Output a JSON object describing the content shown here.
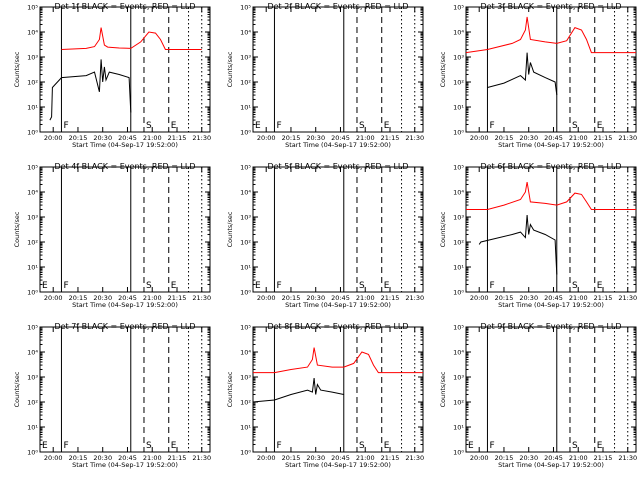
{
  "figure": {
    "xlabel": "Start Time (04-Sep-17 19:52:00)",
    "ylabel": "Counts/sec"
  },
  "chart_data": [
    {
      "type": "line",
      "title": "Det 1f BLACK = Events, RED = LLD",
      "xlabel": "Start Time (04-Sep-17 19:52:00)",
      "ylabel": "Counts/sec",
      "xlim": [
        "19:52",
        "21:35"
      ],
      "xticks": [
        "20:00",
        "20:15",
        "20:30",
        "20:45",
        "21:00",
        "21:15",
        "21:30"
      ],
      "ylim": [
        1,
        100000
      ],
      "ylog": true,
      "yticks": [
        "10^0",
        "10^1",
        "10^2",
        "10^3",
        "10^4",
        "10^5"
      ],
      "markers": [
        {
          "label": "F",
          "x": "20:05",
          "style": "solid"
        },
        {
          "label": "S",
          "x": "20:55",
          "style": "dashed"
        },
        {
          "label": "E",
          "x": "21:10",
          "style": "dashed"
        }
      ],
      "vlines": [
        {
          "x": "20:47",
          "style": "solid"
        },
        {
          "x": "21:22",
          "style": "dotted"
        },
        {
          "x": "21:30",
          "style": "dotted"
        }
      ],
      "series": [
        {
          "name": "LLD",
          "color": "#ff0000",
          "x": [
            "20:05",
            "20:20",
            "20:25",
            "20:28",
            "20:29",
            "20:31",
            "20:33",
            "20:40",
            "20:47",
            "20:53",
            "20:58",
            "21:02",
            "21:05",
            "21:08",
            "21:30"
          ],
          "y": [
            2000,
            2200,
            2600,
            5000,
            15000,
            3000,
            2500,
            2300,
            2200,
            4000,
            10000,
            9000,
            5000,
            2000,
            2000
          ]
        },
        {
          "name": "Events",
          "color": "#000000",
          "x": [
            "19:58",
            "19:59",
            "19:59.5",
            "20:05",
            "20:20",
            "20:25",
            "20:28",
            "20:29",
            "20:30",
            "20:31",
            "20:32",
            "20:34",
            "20:40",
            "20:46",
            "20:47"
          ],
          "y": [
            3,
            4,
            60,
            150,
            180,
            250,
            40,
            800,
            100,
            400,
            120,
            250,
            200,
            150,
            6
          ]
        }
      ]
    },
    {
      "type": "line",
      "title": "Det 2f BLACK = Events, RED = LLD",
      "xlabel": "Start Time (04-Sep-17 19:52:00)",
      "ylabel": "Counts/sec",
      "xlim": [
        "19:52",
        "21:35"
      ],
      "xticks": [
        "20:00",
        "20:15",
        "20:30",
        "20:45",
        "21:00",
        "21:15",
        "21:30"
      ],
      "ylim": [
        1,
        100000
      ],
      "ylog": true,
      "yticks": [
        "10^0",
        "10^1",
        "10^2",
        "10^3",
        "10^4",
        "10^5"
      ],
      "markers": [
        {
          "label": "F",
          "x": "20:05",
          "style": "solid"
        },
        {
          "label": "S",
          "x": "20:55",
          "style": "dashed"
        },
        {
          "label": "E",
          "x": "21:10",
          "style": "dashed"
        }
      ],
      "vlines": [
        {
          "x": "20:47",
          "style": "solid"
        },
        {
          "x": "21:22",
          "style": "dotted"
        },
        {
          "x": "21:30",
          "style": "dotted"
        }
      ],
      "corner_label": "E",
      "series": []
    },
    {
      "type": "line",
      "title": "Det 3f BLACK = Events, RED = LLD",
      "xlabel": "Start Time (04-Sep-17 19:52:00)",
      "ylabel": "Counts/sec",
      "xlim": [
        "19:52",
        "21:35"
      ],
      "xticks": [
        "20:00",
        "20:15",
        "20:30",
        "20:45",
        "21:00",
        "21:15",
        "21:30"
      ],
      "ylim": [
        1,
        100000
      ],
      "ylog": true,
      "yticks": [
        "10^0",
        "10^1",
        "10^2",
        "10^3",
        "10^4",
        "10^5"
      ],
      "markers": [
        {
          "label": "F",
          "x": "20:05",
          "style": "solid"
        },
        {
          "label": "S",
          "x": "20:55",
          "style": "dashed"
        },
        {
          "label": "E",
          "x": "21:10",
          "style": "dashed"
        }
      ],
      "vlines": [
        {
          "x": "20:47",
          "style": "solid"
        },
        {
          "x": "21:22",
          "style": "dotted"
        },
        {
          "x": "21:30",
          "style": "dotted"
        }
      ],
      "series": [
        {
          "name": "LLD",
          "color": "#ff0000",
          "x": [
            "19:52",
            "20:05",
            "20:20",
            "20:25",
            "20:28",
            "20:29",
            "20:31",
            "20:40",
            "20:47",
            "20:53",
            "20:58",
            "21:02",
            "21:05",
            "21:08",
            "21:35"
          ],
          "y": [
            1500,
            2000,
            3500,
            5000,
            12000,
            40000,
            5000,
            4000,
            3500,
            4500,
            15000,
            12000,
            5000,
            1500,
            1500
          ]
        },
        {
          "name": "Events",
          "color": "#000000",
          "x": [
            "20:05",
            "20:15",
            "20:25",
            "20:28",
            "20:29",
            "20:30",
            "20:31",
            "20:33",
            "20:40",
            "20:46",
            "20:47"
          ],
          "y": [
            60,
            90,
            180,
            120,
            1500,
            200,
            600,
            250,
            150,
            100,
            30
          ]
        }
      ]
    },
    {
      "type": "line",
      "title": "Det 4f BLACK = Events, RED = LLD",
      "xlabel": "Start Time (04-Sep-17 19:52:00)",
      "ylabel": "Counts/sec",
      "xlim": [
        "19:52",
        "21:35"
      ],
      "xticks": [
        "20:00",
        "20:15",
        "20:30",
        "20:45",
        "21:00",
        "21:15",
        "21:30"
      ],
      "ylim": [
        1,
        100000
      ],
      "ylog": true,
      "yticks": [
        "10^0",
        "10^1",
        "10^2",
        "10^3",
        "10^4",
        "10^5"
      ],
      "markers": [
        {
          "label": "F",
          "x": "20:05",
          "style": "solid"
        },
        {
          "label": "S",
          "x": "20:55",
          "style": "dashed"
        },
        {
          "label": "E",
          "x": "21:10",
          "style": "dashed"
        }
      ],
      "vlines": [
        {
          "x": "20:47",
          "style": "solid"
        },
        {
          "x": "21:22",
          "style": "dotted"
        },
        {
          "x": "21:30",
          "style": "dotted"
        }
      ],
      "corner_label": "E",
      "series": []
    },
    {
      "type": "line",
      "title": "Det 5f BLACK = Events, RED = LLD",
      "xlabel": "Start Time (04-Sep-17 19:52:00)",
      "ylabel": "Counts/sec",
      "xlim": [
        "19:52",
        "21:35"
      ],
      "xticks": [
        "20:00",
        "20:15",
        "20:30",
        "20:45",
        "21:00",
        "21:15",
        "21:30"
      ],
      "ylim": [
        1,
        100000
      ],
      "ylog": true,
      "yticks": [
        "10^0",
        "10^1",
        "10^2",
        "10^3",
        "10^4",
        "10^5"
      ],
      "markers": [
        {
          "label": "F",
          "x": "20:05",
          "style": "solid"
        },
        {
          "label": "S",
          "x": "20:55",
          "style": "dashed"
        },
        {
          "label": "E",
          "x": "21:10",
          "style": "dashed"
        }
      ],
      "vlines": [
        {
          "x": "20:47",
          "style": "solid"
        },
        {
          "x": "21:22",
          "style": "dotted"
        },
        {
          "x": "21:30",
          "style": "dotted"
        }
      ],
      "corner_label": "E",
      "series": []
    },
    {
      "type": "line",
      "title": "Det 6f BLACK = Events, RED = LLD",
      "xlabel": "Start Time (04-Sep-17 19:52:00)",
      "ylabel": "Counts/sec",
      "xlim": [
        "19:52",
        "21:35"
      ],
      "xticks": [
        "20:00",
        "20:15",
        "20:30",
        "20:45",
        "21:00",
        "21:15",
        "21:30"
      ],
      "ylim": [
        1,
        100000
      ],
      "ylog": true,
      "yticks": [
        "10^0",
        "10^1",
        "10^2",
        "10^3",
        "10^4",
        "10^5"
      ],
      "markers": [
        {
          "label": "F",
          "x": "20:05",
          "style": "solid"
        },
        {
          "label": "S",
          "x": "20:55",
          "style": "dashed"
        },
        {
          "label": "E",
          "x": "21:10",
          "style": "dashed"
        }
      ],
      "vlines": [
        {
          "x": "20:47",
          "style": "solid"
        },
        {
          "x": "21:22",
          "style": "dotted"
        },
        {
          "x": "21:30",
          "style": "dotted"
        }
      ],
      "series": [
        {
          "name": "LLD",
          "color": "#ff0000",
          "x": [
            "19:52",
            "20:05",
            "20:15",
            "20:25",
            "20:28",
            "20:29",
            "20:31",
            "20:40",
            "20:47",
            "20:53",
            "20:58",
            "21:02",
            "21:05",
            "21:08",
            "21:35"
          ],
          "y": [
            2000,
            2000,
            3000,
            5000,
            10000,
            25000,
            4000,
            3500,
            3000,
            4000,
            9000,
            8000,
            4000,
            2000,
            2000
          ]
        },
        {
          "name": "Events",
          "color": "#000000",
          "x": [
            "20:00",
            "20:01",
            "20:20",
            "20:25",
            "20:28",
            "20:29",
            "20:30",
            "20:31",
            "20:33",
            "20:40",
            "20:46",
            "20:47"
          ],
          "y": [
            80,
            100,
            200,
            250,
            150,
            1200,
            200,
            500,
            300,
            200,
            120,
            5
          ]
        }
      ]
    },
    {
      "type": "line",
      "title": "Det 7f BLACK = Events, RED = LLD",
      "xlabel": "Start Time (04-Sep-17 19:52:00)",
      "ylabel": "Counts/sec",
      "xlim": [
        "19:52",
        "21:35"
      ],
      "xticks": [
        "20:00",
        "20:15",
        "20:30",
        "20:45",
        "21:00",
        "21:15",
        "21:30"
      ],
      "ylim": [
        1,
        100000
      ],
      "ylog": true,
      "yticks": [
        "10^0",
        "10^1",
        "10^2",
        "10^3",
        "10^4",
        "10^5"
      ],
      "markers": [
        {
          "label": "F",
          "x": "20:05",
          "style": "solid"
        },
        {
          "label": "S",
          "x": "20:55",
          "style": "dashed"
        },
        {
          "label": "E",
          "x": "21:10",
          "style": "dashed"
        }
      ],
      "vlines": [
        {
          "x": "20:47",
          "style": "solid"
        },
        {
          "x": "21:22",
          "style": "dotted"
        },
        {
          "x": "21:30",
          "style": "dotted"
        }
      ],
      "corner_label": "E",
      "series": []
    },
    {
      "type": "line",
      "title": "Det 8f BLACK = Events, RED = LLD",
      "xlabel": "Start Time (04-Sep-17 19:52:00)",
      "ylabel": "Counts/sec",
      "xlim": [
        "19:52",
        "21:35"
      ],
      "xticks": [
        "20:00",
        "20:15",
        "20:30",
        "20:45",
        "21:00",
        "21:15",
        "21:30"
      ],
      "ylim": [
        1,
        100000
      ],
      "ylog": true,
      "yticks": [
        "10^0",
        "10^1",
        "10^2",
        "10^3",
        "10^4",
        "10^5"
      ],
      "markers": [
        {
          "label": "F",
          "x": "20:05",
          "style": "solid"
        },
        {
          "label": "S",
          "x": "20:55",
          "style": "dashed"
        },
        {
          "label": "E",
          "x": "21:10",
          "style": "dashed"
        }
      ],
      "vlines": [
        {
          "x": "20:47",
          "style": "solid"
        },
        {
          "x": "21:22",
          "style": "dotted"
        },
        {
          "x": "21:30",
          "style": "dotted"
        }
      ],
      "series": [
        {
          "name": "LLD",
          "color": "#ff0000",
          "x": [
            "19:52",
            "20:05",
            "20:15",
            "20:25",
            "20:28",
            "20:29",
            "20:31",
            "20:40",
            "20:47",
            "20:53",
            "20:58",
            "21:02",
            "21:05",
            "21:08",
            "21:35"
          ],
          "y": [
            1500,
            1500,
            2000,
            2500,
            5000,
            15000,
            3000,
            2500,
            2500,
            3500,
            10000,
            8000,
            3000,
            1500,
            1500
          ]
        },
        {
          "name": "Events",
          "color": "#000000",
          "x": [
            "19:52",
            "20:05",
            "20:15",
            "20:25",
            "20:28",
            "20:29",
            "20:30",
            "20:31",
            "20:33",
            "20:40",
            "20:47"
          ],
          "y": [
            100,
            120,
            200,
            300,
            250,
            900,
            200,
            500,
            300,
            250,
            200
          ]
        }
      ]
    },
    {
      "type": "line",
      "title": "Det 9f BLACK = Events, RED = LLD",
      "xlabel": "Start Time (04-Sep-17 19:52:00)",
      "ylabel": "Counts/sec",
      "xlim": [
        "19:52",
        "21:35"
      ],
      "xticks": [
        "20:00",
        "20:15",
        "20:30",
        "20:45",
        "21:00",
        "21:15",
        "21:30"
      ],
      "ylim": [
        1,
        100000
      ],
      "ylog": true,
      "yticks": [
        "10^0",
        "10^1",
        "10^2",
        "10^3",
        "10^4",
        "10^5"
      ],
      "markers": [
        {
          "label": "F",
          "x": "20:05",
          "style": "solid"
        },
        {
          "label": "S",
          "x": "20:55",
          "style": "dashed"
        },
        {
          "label": "E",
          "x": "21:10",
          "style": "dashed"
        }
      ],
      "vlines": [
        {
          "x": "20:47",
          "style": "solid"
        },
        {
          "x": "21:22",
          "style": "dotted"
        },
        {
          "x": "21:30",
          "style": "dotted"
        }
      ],
      "corner_label": "E",
      "series": []
    }
  ]
}
